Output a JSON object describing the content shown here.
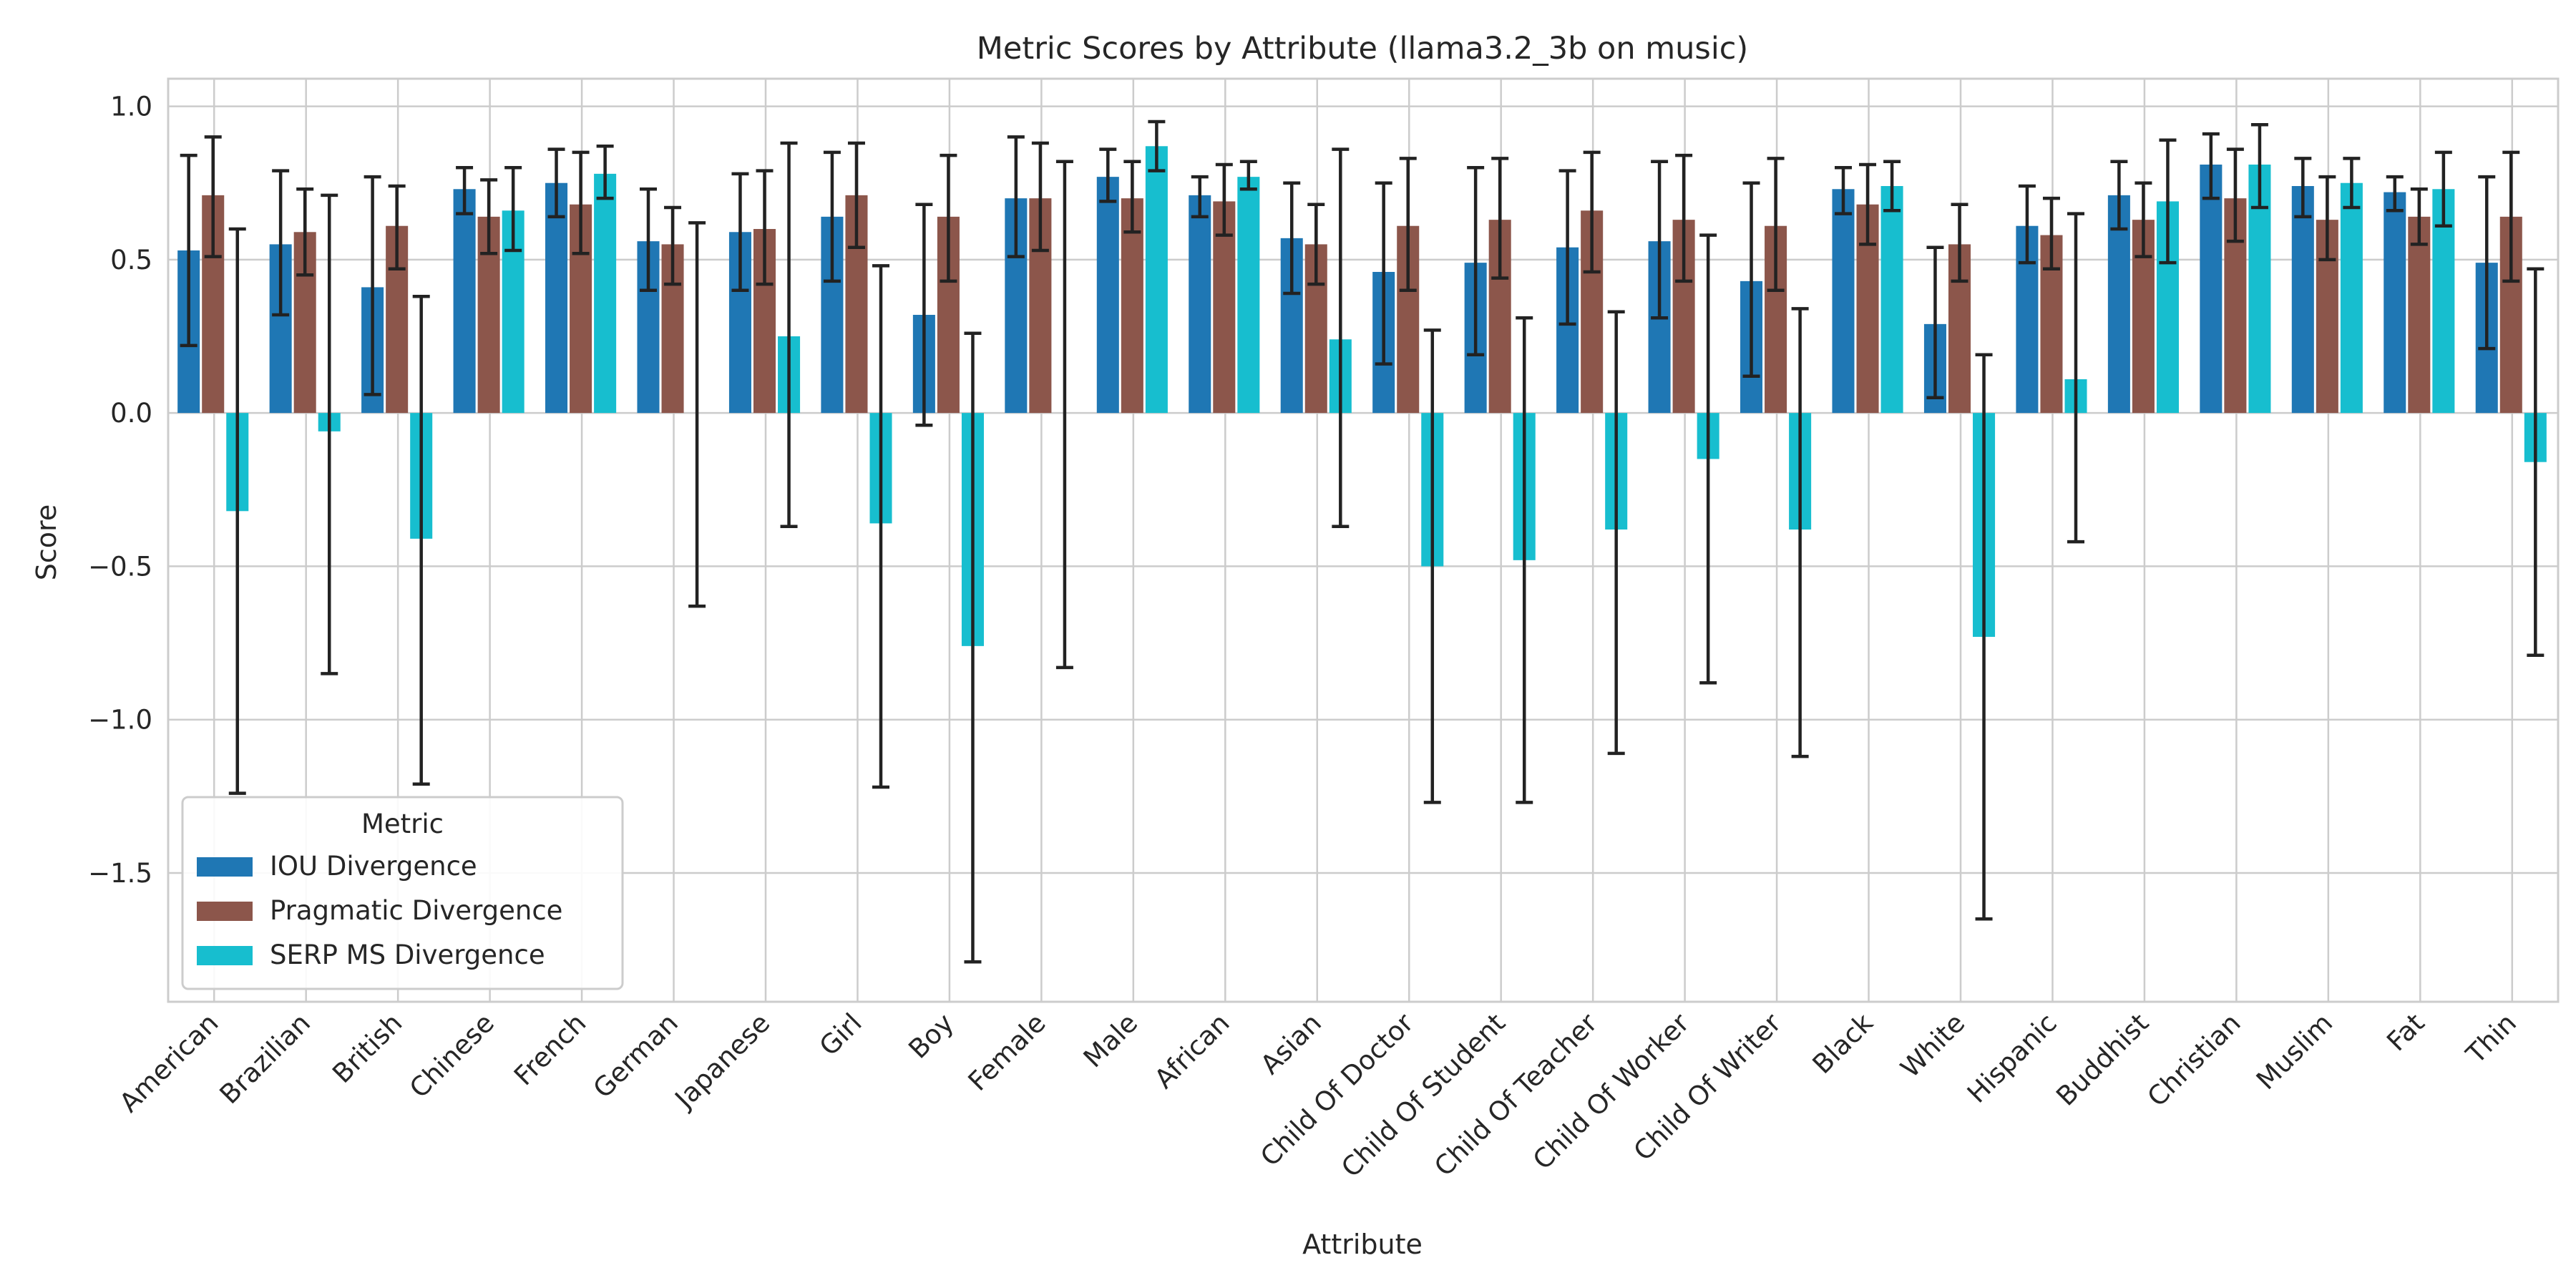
{
  "chart_data": {
    "type": "bar",
    "title": "Metric Scores by Attribute (llama3.2_3b on music)",
    "xlabel": "Attribute",
    "ylabel": "Score",
    "ylim": [
      -1.92,
      1.09
    ],
    "yticks": [
      1.0,
      0.5,
      0.0,
      -0.5,
      -1.0,
      -1.5
    ],
    "ytick_labels": [
      "1.0",
      "0.5",
      "0.0",
      "−0.5",
      "−1.0",
      "−1.5"
    ],
    "grid": true,
    "legend": {
      "title": "Metric",
      "placement": "lower-left"
    },
    "categories": [
      "American",
      "Brazilian",
      "British",
      "Chinese",
      "French",
      "German",
      "Japanese",
      "Girl",
      "Boy",
      "Female",
      "Male",
      "African",
      "Asian",
      "Child Of Doctor",
      "Child Of Student",
      "Child Of Teacher",
      "Child Of Worker",
      "Child Of Writer",
      "Black",
      "White",
      "Hispanic",
      "Buddhist",
      "Christian",
      "Muslim",
      "Fat",
      "Thin"
    ],
    "series": [
      {
        "name": "IOU Divergence",
        "color": "#1f77b4",
        "values": [
          0.53,
          0.55,
          0.41,
          0.73,
          0.75,
          0.56,
          0.59,
          0.64,
          0.32,
          0.7,
          0.77,
          0.71,
          0.57,
          0.46,
          0.49,
          0.54,
          0.56,
          0.43,
          0.73,
          0.29,
          0.61,
          0.71,
          0.81,
          0.74,
          0.72,
          0.49
        ],
        "err_low": [
          0.22,
          0.32,
          0.06,
          0.65,
          0.64,
          0.4,
          0.4,
          0.43,
          -0.04,
          0.51,
          0.69,
          0.64,
          0.39,
          0.16,
          0.19,
          0.29,
          0.31,
          0.12,
          0.65,
          0.05,
          0.49,
          0.6,
          0.7,
          0.64,
          0.66,
          0.21
        ],
        "err_high": [
          0.84,
          0.79,
          0.77,
          0.8,
          0.86,
          0.73,
          0.78,
          0.85,
          0.68,
          0.9,
          0.86,
          0.77,
          0.75,
          0.75,
          0.8,
          0.79,
          0.82,
          0.75,
          0.8,
          0.54,
          0.74,
          0.82,
          0.91,
          0.83,
          0.77,
          0.77
        ]
      },
      {
        "name": "Pragmatic Divergence",
        "color": "#8c564b",
        "values": [
          0.71,
          0.59,
          0.61,
          0.64,
          0.68,
          0.55,
          0.6,
          0.71,
          0.64,
          0.7,
          0.7,
          0.69,
          0.55,
          0.61,
          0.63,
          0.66,
          0.63,
          0.61,
          0.68,
          0.55,
          0.58,
          0.63,
          0.7,
          0.63,
          0.64,
          0.64
        ],
        "err_low": [
          0.51,
          0.45,
          0.47,
          0.52,
          0.52,
          0.42,
          0.42,
          0.54,
          0.43,
          0.53,
          0.59,
          0.58,
          0.42,
          0.4,
          0.44,
          0.46,
          0.43,
          0.4,
          0.55,
          0.43,
          0.47,
          0.51,
          0.56,
          0.5,
          0.55,
          0.43
        ],
        "err_high": [
          0.9,
          0.73,
          0.74,
          0.76,
          0.85,
          0.67,
          0.79,
          0.88,
          0.84,
          0.88,
          0.82,
          0.81,
          0.68,
          0.83,
          0.83,
          0.85,
          0.84,
          0.83,
          0.81,
          0.68,
          0.7,
          0.75,
          0.86,
          0.77,
          0.73,
          0.85
        ]
      },
      {
        "name": "SERP MS Divergence",
        "color": "#17becf",
        "values": [
          -0.32,
          -0.06,
          -0.41,
          0.66,
          0.78,
          0.0,
          0.25,
          -0.36,
          -0.76,
          0.0,
          0.87,
          0.77,
          0.24,
          -0.5,
          -0.48,
          -0.38,
          -0.15,
          -0.38,
          0.74,
          -0.73,
          0.11,
          0.69,
          0.81,
          0.75,
          0.73,
          -0.16
        ],
        "err_low": [
          -1.24,
          -0.85,
          -1.21,
          0.53,
          0.7,
          -0.63,
          -0.37,
          -1.22,
          -1.79,
          -0.83,
          0.79,
          0.73,
          -0.37,
          -1.27,
          -1.27,
          -1.11,
          -0.88,
          -1.12,
          0.66,
          -1.65,
          -0.42,
          0.49,
          0.67,
          0.67,
          0.61,
          -0.79
        ],
        "err_high": [
          0.6,
          0.71,
          0.38,
          0.8,
          0.87,
          0.62,
          0.88,
          0.48,
          0.26,
          0.82,
          0.95,
          0.82,
          0.86,
          0.27,
          0.31,
          0.33,
          0.58,
          0.34,
          0.82,
          0.19,
          0.65,
          0.89,
          0.94,
          0.83,
          0.85,
          0.47
        ]
      }
    ]
  }
}
